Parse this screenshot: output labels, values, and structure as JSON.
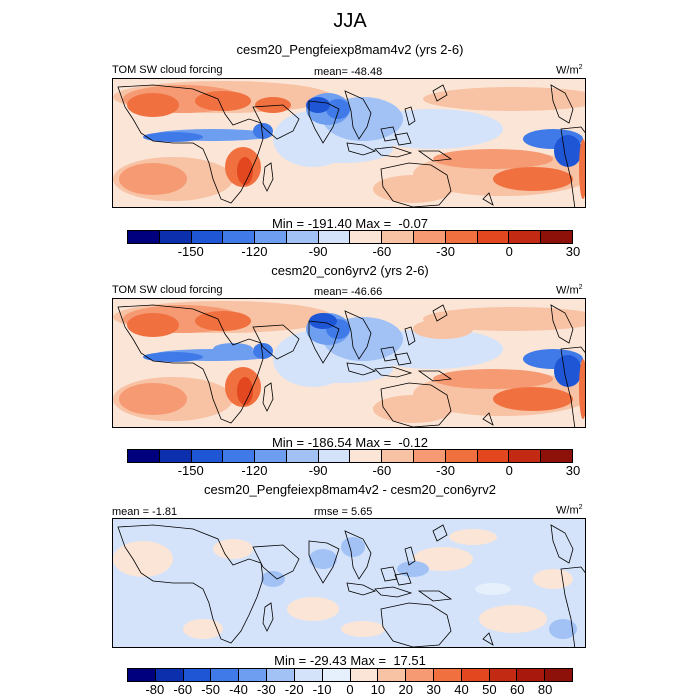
{
  "chart_data": {
    "type": "heatmap",
    "title": "JJA",
    "panels": [
      {
        "title": "cesm20_Pengfeiexp8mam4v2 (yrs 2-6)",
        "left_label": "TOM SW cloud forcing",
        "center_label": "mean= -48.48",
        "units": "W/m",
        "units_exp": "2",
        "min_max_text": "Min = -191.40 Max =  -0.07",
        "min": -191.4,
        "max": -0.07,
        "mean": -48.48,
        "colorbar": {
          "tick_labels": [
            "-150",
            "-120",
            "-90",
            "-60",
            "-30",
            "0",
            "30"
          ],
          "tick_positions": [
            2,
            4,
            6,
            8,
            10,
            12,
            14
          ],
          "colors": [
            "#00007e",
            "#0c2fae",
            "#1f56d6",
            "#3f7ae8",
            "#6e9ef0",
            "#a2c2f6",
            "#d4e3fa",
            "#fbe5d6",
            "#f8c2a4",
            "#f59a73",
            "#f0703f",
            "#e2471f",
            "#c22a14",
            "#8d1109"
          ]
        },
        "variant": "a"
      },
      {
        "title": "cesm20_con6yrv2 (yrs 2-6)",
        "left_label": "TOM SW cloud forcing",
        "center_label": "mean= -46.66",
        "units": "W/m",
        "units_exp": "2",
        "min_max_text": "Min = -186.54 Max =  -0.12",
        "min": -186.54,
        "max": -0.12,
        "mean": -46.66,
        "colorbar": {
          "tick_labels": [
            "-150",
            "-120",
            "-90",
            "-60",
            "-30",
            "0",
            "30"
          ],
          "tick_positions": [
            2,
            4,
            6,
            8,
            10,
            12,
            14
          ],
          "colors": [
            "#00007e",
            "#0c2fae",
            "#1f56d6",
            "#3f7ae8",
            "#6e9ef0",
            "#a2c2f6",
            "#d4e3fa",
            "#fbe5d6",
            "#f8c2a4",
            "#f59a73",
            "#f0703f",
            "#e2471f",
            "#c22a14",
            "#8d1109"
          ]
        },
        "variant": "b"
      },
      {
        "title": "cesm20_Pengfeiexp8mam4v2 - cesm20_con6yrv2",
        "left_label": "mean =  -1.81",
        "center_label": "rmse =   5.65",
        "units": "W/m",
        "units_exp": "2",
        "min_max_text": "Min = -29.43 Max =  17.51",
        "min": -29.43,
        "max": 17.51,
        "mean": -1.81,
        "rmse": 5.65,
        "colorbar": {
          "tick_labels": [
            "-80",
            "-60",
            "-50",
            "-40",
            "-30",
            "-20",
            "-10",
            "0",
            "10",
            "20",
            "30",
            "40",
            "50",
            "60",
            "80"
          ],
          "tick_positions": [
            1,
            2,
            3,
            4,
            5,
            6,
            7,
            8,
            9,
            10,
            11,
            12,
            13,
            14,
            15
          ],
          "colors": [
            "#00007e",
            "#0c2fae",
            "#1f56d6",
            "#3f7ae8",
            "#6e9ef0",
            "#a2c2f6",
            "#d4e3fa",
            "#e6f0fc",
            "#fbe5d6",
            "#f8c2a4",
            "#f59a73",
            "#f0703f",
            "#e2471f",
            "#c22a14",
            "#a8180c",
            "#8d1109"
          ]
        },
        "variant": "diff"
      }
    ]
  }
}
